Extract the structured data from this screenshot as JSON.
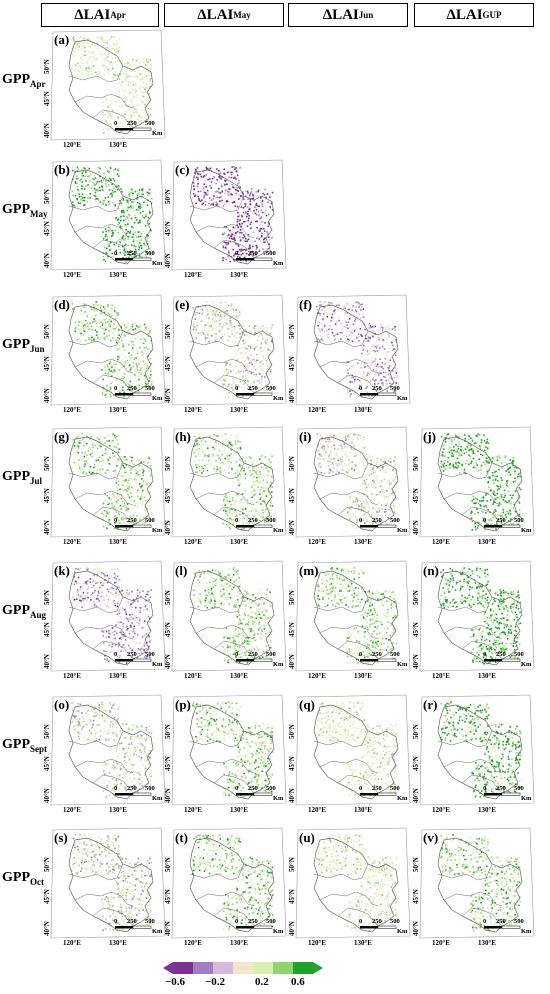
{
  "columns": [
    {
      "main": "ΔLAI",
      "sub": "Apr"
    },
    {
      "main": "ΔLAI",
      "sub": "May"
    },
    {
      "main": "ΔLAI",
      "sub": "Jun"
    },
    {
      "main": "ΔLAI",
      "sub": "GUP"
    }
  ],
  "rows": [
    {
      "main": "GPP",
      "sub": "Apr"
    },
    {
      "main": "GPP",
      "sub": "May"
    },
    {
      "main": "GPP",
      "sub": "Jun"
    },
    {
      "main": "GPP",
      "sub": "Jul"
    },
    {
      "main": "GPP",
      "sub": "Aug"
    },
    {
      "main": "GPP",
      "sub": "Sept"
    },
    {
      "main": "GPP",
      "sub": "Oct"
    }
  ],
  "map_labels": {
    "lon_120": "120°E",
    "lon_130": "130°E",
    "lat_50": "50°N",
    "lat_45": "45°N",
    "lat_40": "40°N",
    "scale_0": "0",
    "scale_250": "250",
    "scale_500": "500",
    "scale_unit": "Km"
  },
  "panels": [
    {
      "label": "(a)",
      "row": 0,
      "col": 0,
      "tone": "lgreen"
    },
    {
      "label": "(b)",
      "row": 1,
      "col": 0,
      "tone": "dgreen"
    },
    {
      "label": "(c)",
      "row": 1,
      "col": 1,
      "tone": "purple"
    },
    {
      "label": "(d)",
      "row": 2,
      "col": 0,
      "tone": "green"
    },
    {
      "label": "(e)",
      "row": 2,
      "col": 1,
      "tone": "mixed"
    },
    {
      "label": "(f)",
      "row": 2,
      "col": 2,
      "tone": "purplemix"
    },
    {
      "label": "(g)",
      "row": 3,
      "col": 0,
      "tone": "green"
    },
    {
      "label": "(h)",
      "row": 3,
      "col": 1,
      "tone": "green"
    },
    {
      "label": "(i)",
      "row": 3,
      "col": 2,
      "tone": "mixed"
    },
    {
      "label": "(j)",
      "row": 3,
      "col": 3,
      "tone": "dgreen"
    },
    {
      "label": "(k)",
      "row": 4,
      "col": 0,
      "tone": "purplemix"
    },
    {
      "label": "(l)",
      "row": 4,
      "col": 1,
      "tone": "green"
    },
    {
      "label": "(m)",
      "row": 4,
      "col": 2,
      "tone": "green"
    },
    {
      "label": "(n)",
      "row": 4,
      "col": 3,
      "tone": "dgreen"
    },
    {
      "label": "(o)",
      "row": 5,
      "col": 0,
      "tone": "mixed"
    },
    {
      "label": "(p)",
      "row": 5,
      "col": 1,
      "tone": "green"
    },
    {
      "label": "(q)",
      "row": 5,
      "col": 2,
      "tone": "lgreen"
    },
    {
      "label": "(r)",
      "row": 5,
      "col": 3,
      "tone": "dgreen"
    },
    {
      "label": "(s)",
      "row": 6,
      "col": 0,
      "tone": "mixed"
    },
    {
      "label": "(t)",
      "row": 6,
      "col": 1,
      "tone": "green"
    },
    {
      "label": "(u)",
      "row": 6,
      "col": 2,
      "tone": "lgreen"
    },
    {
      "label": "(v)",
      "row": 6,
      "col": 3,
      "tone": "green"
    }
  ],
  "colorbar": {
    "colors": [
      "#7b3294",
      "#a37cc2",
      "#d8b8dd",
      "#f3e6cf",
      "#d9efae",
      "#8fd26f",
      "#1fa32c"
    ],
    "tick_labels": [
      "−0.6",
      "−0.2",
      "0.2",
      "0.6"
    ]
  }
}
